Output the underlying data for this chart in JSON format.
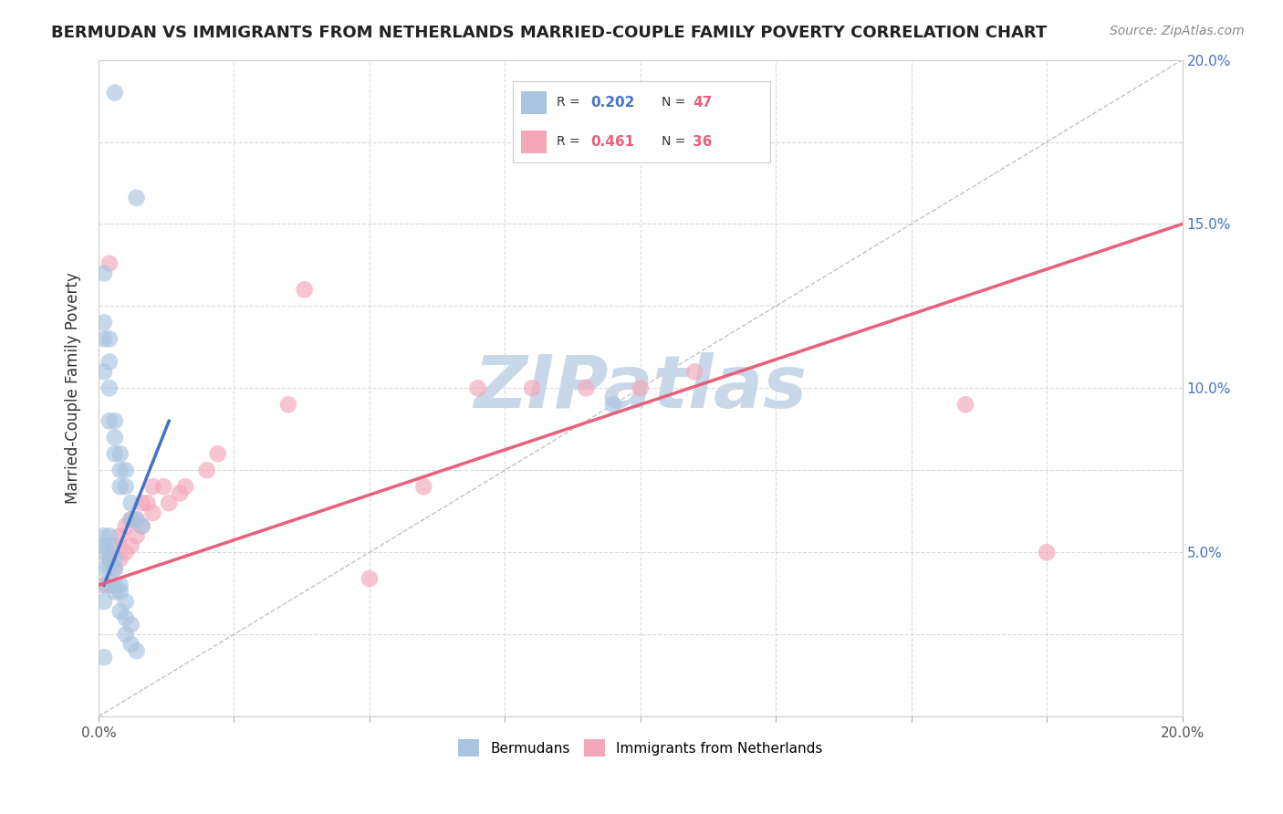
{
  "title": "BERMUDAN VS IMMIGRANTS FROM NETHERLANDS MARRIED-COUPLE FAMILY POVERTY CORRELATION CHART",
  "source": "Source: ZipAtlas.com",
  "xlabel": "",
  "ylabel": "Married-Couple Family Poverty",
  "xlim": [
    0.0,
    0.2
  ],
  "ylim": [
    0.0,
    0.2
  ],
  "xticks": [
    0.0,
    0.025,
    0.05,
    0.075,
    0.1,
    0.125,
    0.15,
    0.175,
    0.2
  ],
  "yticks": [
    0.0,
    0.025,
    0.05,
    0.075,
    0.1,
    0.125,
    0.15,
    0.175,
    0.2
  ],
  "bermuda_R": 0.202,
  "bermuda_N": 47,
  "netherlands_R": 0.461,
  "netherlands_N": 36,
  "bermuda_color": "#a8c4e0",
  "bermuda_line_color": "#4472c4",
  "netherlands_color": "#f4a7b9",
  "netherlands_line_color": "#e8607a",
  "watermark": "ZIPatlas",
  "watermark_color": "#c8d8e8",
  "background_color": "#ffffff",
  "grid_color": "#d0d0d0",
  "bermuda_x": [
    0.003,
    0.007,
    0.001,
    0.001,
    0.001,
    0.001,
    0.002,
    0.002,
    0.002,
    0.002,
    0.003,
    0.003,
    0.003,
    0.004,
    0.004,
    0.004,
    0.005,
    0.005,
    0.006,
    0.006,
    0.007,
    0.008,
    0.001,
    0.001,
    0.001,
    0.001,
    0.001,
    0.001,
    0.002,
    0.002,
    0.002,
    0.002,
    0.003,
    0.003,
    0.003,
    0.003,
    0.004,
    0.004,
    0.004,
    0.005,
    0.005,
    0.005,
    0.006,
    0.006,
    0.007,
    0.095,
    0.001
  ],
  "bermuda_y": [
    0.19,
    0.158,
    0.135,
    0.12,
    0.115,
    0.105,
    0.115,
    0.108,
    0.1,
    0.09,
    0.09,
    0.085,
    0.08,
    0.08,
    0.075,
    0.07,
    0.075,
    0.07,
    0.065,
    0.06,
    0.06,
    0.058,
    0.055,
    0.052,
    0.05,
    0.045,
    0.04,
    0.035,
    0.055,
    0.052,
    0.048,
    0.045,
    0.048,
    0.045,
    0.04,
    0.038,
    0.04,
    0.038,
    0.032,
    0.035,
    0.03,
    0.025,
    0.028,
    0.022,
    0.02,
    0.095,
    0.018
  ],
  "bermuda_line_x": [
    0.001,
    0.013
  ],
  "bermuda_line_y": [
    0.04,
    0.09
  ],
  "netherlands_x": [
    0.001,
    0.002,
    0.002,
    0.003,
    0.003,
    0.004,
    0.004,
    0.005,
    0.005,
    0.006,
    0.006,
    0.007,
    0.007,
    0.008,
    0.008,
    0.009,
    0.01,
    0.01,
    0.012,
    0.013,
    0.015,
    0.016,
    0.02,
    0.022,
    0.035,
    0.038,
    0.05,
    0.06,
    0.07,
    0.08,
    0.09,
    0.1,
    0.11,
    0.16,
    0.175,
    0.002
  ],
  "netherlands_y": [
    0.04,
    0.048,
    0.04,
    0.052,
    0.045,
    0.055,
    0.048,
    0.058,
    0.05,
    0.06,
    0.052,
    0.06,
    0.055,
    0.065,
    0.058,
    0.065,
    0.07,
    0.062,
    0.07,
    0.065,
    0.068,
    0.07,
    0.075,
    0.08,
    0.095,
    0.13,
    0.042,
    0.07,
    0.1,
    0.1,
    0.1,
    0.1,
    0.105,
    0.095,
    0.05,
    0.138
  ],
  "netherlands_line_x": [
    0.0,
    0.2
  ],
  "netherlands_line_y": [
    0.04,
    0.15
  ]
}
